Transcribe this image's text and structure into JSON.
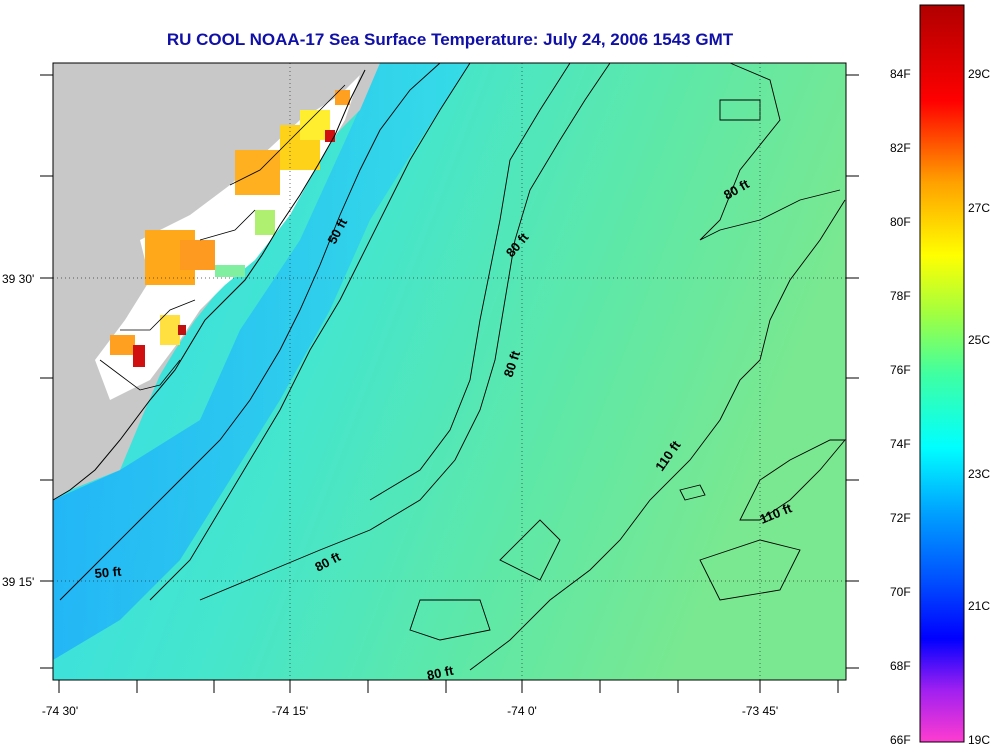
{
  "title": "RU COOL  NOAA-17  Sea Surface Temperature:  July 24, 2006 1543 GMT",
  "map": {
    "land_color": "#c8c8c8",
    "ocean_base_color": "#57e6b8",
    "x_ticks": [
      "-74 30'",
      "-74 15'",
      "-74 0'",
      "-73 45'"
    ],
    "y_ticks": [
      "39 30'",
      "39 15'"
    ],
    "contour_labels": [
      "50 ft",
      "50 ft",
      "80 ft",
      "80 ft",
      "80 ft",
      "80 ft",
      "80 ft",
      "110 ft",
      "110 ft"
    ]
  },
  "colorbar": {
    "f_labels": [
      "84F",
      "82F",
      "80F",
      "78F",
      "76F",
      "74F",
      "72F",
      "70F",
      "68F",
      "66F"
    ],
    "c_labels": [
      "29C",
      "27C",
      "25C",
      "23C",
      "21C",
      "19C"
    ],
    "colors": [
      "#ff3ccf",
      "#a020f0",
      "#0000ff",
      "#00a0ff",
      "#00ffff",
      "#40ffa0",
      "#a0ff40",
      "#ffff00",
      "#ffa000",
      "#ff0000",
      "#b00000"
    ]
  }
}
